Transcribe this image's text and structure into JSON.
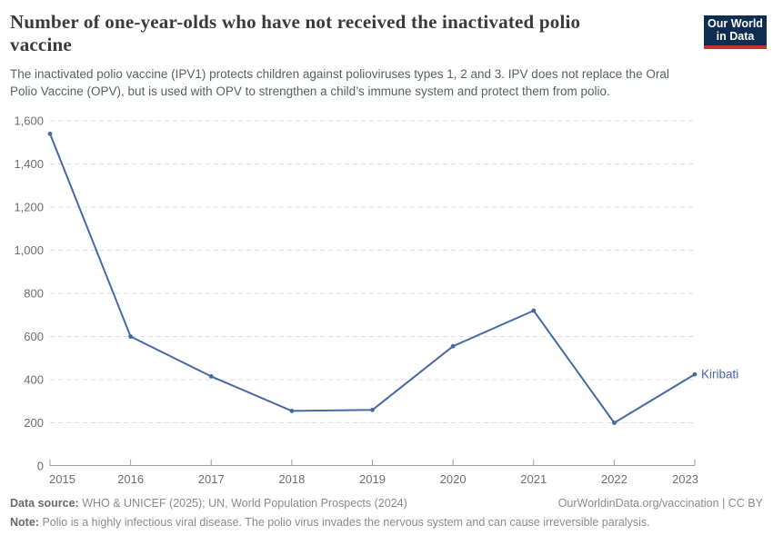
{
  "header": {
    "title_line1": "Number of one-year-olds who have not received the inactivated polio",
    "title_line2": "vaccine",
    "subtitle_line1": "The inactivated polio vaccine (IPV1) protects children against polioviruses types 1, 2 and 3. IPV does not replace the Oral",
    "subtitle_line2": "Polio Vaccine (OPV), but is used with OPV to strengthen a child’s immune system and protect them from polio.",
    "logo_line1": "Our World",
    "logo_line2": "in Data"
  },
  "chart_data": {
    "type": "line",
    "title": "Number of one-year-olds who have not received the inactivated polio vaccine",
    "x": [
      2015,
      2016,
      2017,
      2018,
      2019,
      2020,
      2021,
      2022,
      2023
    ],
    "series": [
      {
        "name": "Kiribati",
        "values": [
          1540,
          600,
          415,
          255,
          260,
          555,
          720,
          200,
          425
        ]
      }
    ],
    "xlabel": "",
    "ylabel": "",
    "ylim": [
      0,
      1600
    ],
    "yticks": [
      0,
      200,
      400,
      600,
      800,
      1000,
      1200,
      1400,
      1600
    ],
    "grid": true,
    "legend": "end-of-line label"
  },
  "footer": {
    "data_source_label": "Data source:",
    "data_source_text": "WHO & UNICEF (2025); UN, World Population Prospects (2024)",
    "link": "OurWorldinData.org/vaccination | CC BY",
    "note_label": "Note:",
    "note_text": "Polio is a highly infectious viral disease. The polio virus invades the nervous system and can cause irreversible paralysis."
  },
  "colors": {
    "series_line": "#4669a5",
    "gridline": "#dcdcdc",
    "axis": "#9e9e9e",
    "tick_label": "#6e6e6e",
    "title_text": "#3a3a3a",
    "subtitle_text": "#575f66",
    "logo_navy": "#0e2d51",
    "logo_red": "#c0362c",
    "footer_text": "#8a8a8a"
  }
}
